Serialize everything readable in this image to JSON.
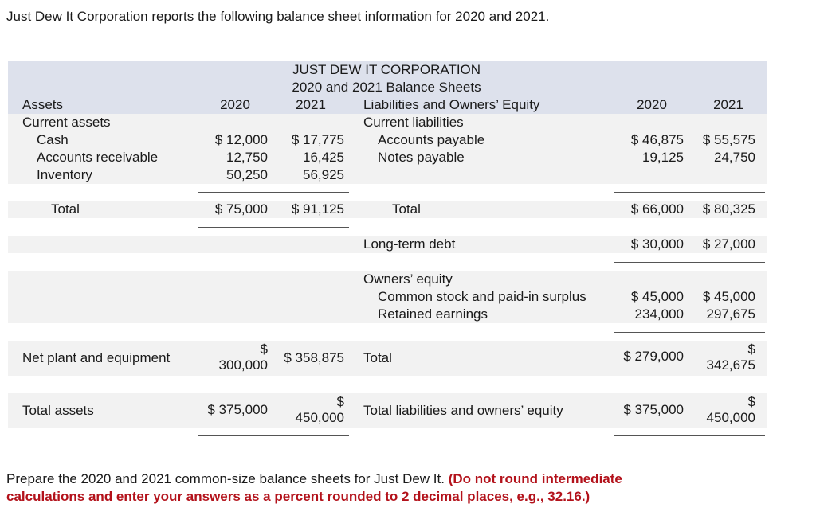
{
  "intro": "Just Dew It Corporation reports the following balance sheet information for 2020 and 2021.",
  "table": {
    "title_line1": "JUST DEW IT CORPORATION",
    "title_line2": "2020 and 2021 Balance Sheets",
    "assets_header": "Assets",
    "liab_header": "Liabilities and Owners’ Equity",
    "year1": "2020",
    "year2": "2021",
    "current_assets": "Current assets",
    "cash": {
      "label": "Cash",
      "y1": "$ 12,000",
      "y2": "$ 17,775"
    },
    "ar": {
      "label": "Accounts receivable",
      "y1": "12,750",
      "y2": "16,425"
    },
    "inventory": {
      "label": "Inventory",
      "y1": "50,250",
      "y2": "56,925"
    },
    "current_liabilities": "Current liabilities",
    "ap": {
      "label": "Accounts payable",
      "y1": "$ 46,875",
      "y2": "$ 55,575"
    },
    "np": {
      "label": "Notes payable",
      "y1": "19,125",
      "y2": "24,750"
    },
    "ca_total": {
      "label": "Total",
      "y1": "$ 75,000",
      "y2": "$ 91,125"
    },
    "cl_total": {
      "label": "Total",
      "y1": "$ 66,000",
      "y2": "$ 80,325"
    },
    "ltd": {
      "label": "Long-term debt",
      "y1": "$ 30,000",
      "y2": "$ 27,000"
    },
    "owners_equity": "Owners’ equity",
    "common": {
      "label": "Common stock and paid-in surplus",
      "y1": "$ 45,000",
      "y2": "$ 45,000"
    },
    "retained": {
      "label": "Retained earnings",
      "y1": "234,000",
      "y2": "297,675"
    },
    "npe": {
      "label": "Net plant and equipment",
      "y1_sym": "$",
      "y1": "300,000",
      "y2": "$ 358,875"
    },
    "oe_total": {
      "label": "Total",
      "y1": "$ 279,000",
      "y2_sym": "$",
      "y2": "342,675"
    },
    "total_assets": {
      "label": "Total assets",
      "y1": "$ 375,000",
      "y2_sym": "$",
      "y2": "450,000"
    },
    "total_le": {
      "label": "Total liabilities and owners’ equity",
      "y1": "$ 375,000",
      "y2_sym": "$",
      "y2": "450,000"
    }
  },
  "prompt": {
    "text": "Prepare the 2020 and 2021 common-size balance sheets for Just Dew It. ",
    "emphasis": "(Do not round intermediate calculations and enter your answers as a percent rounded to 2 decimal places, e.g., 32.16.)"
  }
}
